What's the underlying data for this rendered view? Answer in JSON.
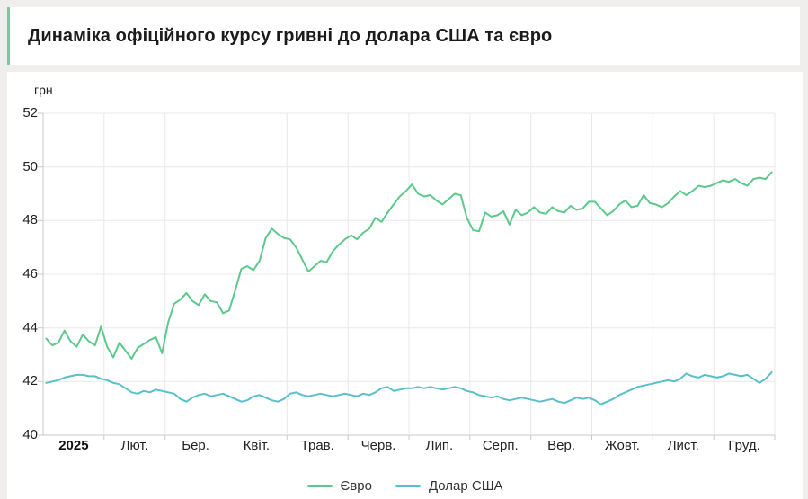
{
  "page": {
    "background_color": "#efeeec",
    "card_color": "#ffffff",
    "accent_border_color": "#7cc9a1"
  },
  "header": {
    "title": "Динаміка офіційного курсу гривні до долара США та євро"
  },
  "chart_data": {
    "type": "line",
    "unit_label": "грн",
    "ylim": [
      40,
      52
    ],
    "y_ticks": [
      40,
      42,
      44,
      46,
      48,
      50,
      52
    ],
    "grid": true,
    "legend_position": "bottom",
    "x_categories": [
      "2025",
      "Лют.",
      "Бер.",
      "Квіт.",
      "Трав.",
      "Черв.",
      "Лип.",
      "Серп.",
      "Вер.",
      "Жовт.",
      "Лист.",
      "Груд."
    ],
    "series": [
      {
        "name": "Євро",
        "color": "#5cc98c",
        "values": [
          43.6,
          43.35,
          43.45,
          43.9,
          43.5,
          43.3,
          43.75,
          43.5,
          43.35,
          44.05,
          43.3,
          42.9,
          43.45,
          43.15,
          42.85,
          43.25,
          43.4,
          43.55,
          43.65,
          43.05,
          44.2,
          44.9,
          45.05,
          45.3,
          45.0,
          44.85,
          45.25,
          45.0,
          44.95,
          44.55,
          44.65,
          45.4,
          46.2,
          46.3,
          46.15,
          46.5,
          47.35,
          47.7,
          47.5,
          47.35,
          47.3,
          47.0,
          46.55,
          46.1,
          46.3,
          46.5,
          46.45,
          46.85,
          47.1,
          47.3,
          47.45,
          47.3,
          47.55,
          47.7,
          48.1,
          47.95,
          48.3,
          48.6,
          48.9,
          49.1,
          49.35,
          49.0,
          48.9,
          48.95,
          48.75,
          48.6,
          48.8,
          49.0,
          48.95,
          48.1,
          47.65,
          47.6,
          48.3,
          48.15,
          48.2,
          48.35,
          47.85,
          48.4,
          48.2,
          48.3,
          48.5,
          48.3,
          48.25,
          48.5,
          48.35,
          48.3,
          48.55,
          48.4,
          48.45,
          48.7,
          48.7,
          48.45,
          48.2,
          48.35,
          48.6,
          48.75,
          48.5,
          48.55,
          48.95,
          48.65,
          48.6,
          48.5,
          48.65,
          48.9,
          49.1,
          48.95,
          49.1,
          49.3,
          49.25,
          49.3,
          49.4,
          49.5,
          49.45,
          49.55,
          49.4,
          49.3,
          49.55,
          49.6,
          49.55,
          49.8
        ]
      },
      {
        "name": "Долар США",
        "color": "#57c0c9",
        "values": [
          41.95,
          42.0,
          42.05,
          42.15,
          42.2,
          42.25,
          42.25,
          42.2,
          42.2,
          42.1,
          42.05,
          41.95,
          41.9,
          41.75,
          41.6,
          41.55,
          41.65,
          41.6,
          41.7,
          41.65,
          41.6,
          41.55,
          41.35,
          41.25,
          41.4,
          41.5,
          41.55,
          41.45,
          41.5,
          41.55,
          41.45,
          41.35,
          41.25,
          41.3,
          41.45,
          41.5,
          41.4,
          41.3,
          41.25,
          41.35,
          41.55,
          41.6,
          41.5,
          41.45,
          41.5,
          41.55,
          41.5,
          41.45,
          41.5,
          41.55,
          41.5,
          41.45,
          41.55,
          41.5,
          41.6,
          41.75,
          41.8,
          41.65,
          41.7,
          41.75,
          41.75,
          41.8,
          41.75,
          41.8,
          41.75,
          41.7,
          41.75,
          41.8,
          41.75,
          41.65,
          41.6,
          41.5,
          41.45,
          41.4,
          41.45,
          41.35,
          41.3,
          41.35,
          41.4,
          41.35,
          41.3,
          41.25,
          41.3,
          41.35,
          41.25,
          41.2,
          41.3,
          41.4,
          41.35,
          41.4,
          41.3,
          41.15,
          41.25,
          41.35,
          41.5,
          41.6,
          41.7,
          41.8,
          41.85,
          41.9,
          41.95,
          42.0,
          42.05,
          42.0,
          42.1,
          42.3,
          42.2,
          42.15,
          42.25,
          42.2,
          42.15,
          42.2,
          42.3,
          42.25,
          42.2,
          42.25,
          42.1,
          41.95,
          42.1,
          42.35
        ]
      }
    ]
  }
}
